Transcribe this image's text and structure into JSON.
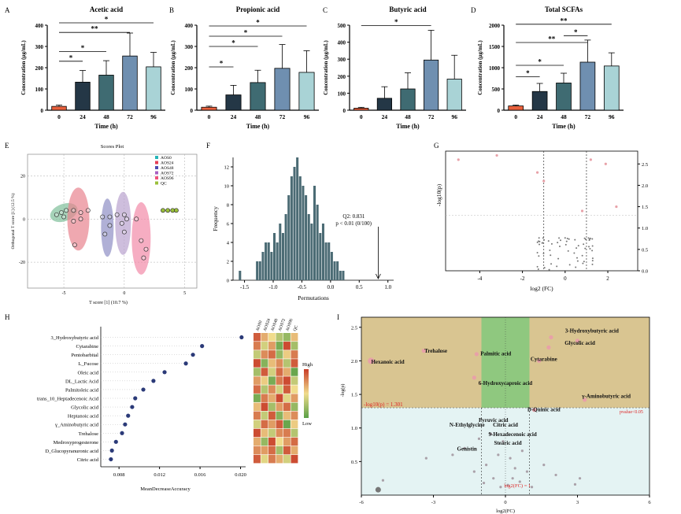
{
  "panel_letters": {
    "A": "A",
    "B": "B",
    "C": "C",
    "D": "D",
    "E": "E",
    "F": "F",
    "G": "G",
    "H": "H",
    "I": "I"
  },
  "colors": {
    "bar0": "#e8603c",
    "bar24": "#243746",
    "bar48": "#3f6b72",
    "bar72": "#6f8fb0",
    "bar96": "#a9d3d6",
    "perm": "#4b6b74",
    "zoneUpper": "#d9c591",
    "zoneLower": "#e4f3f3",
    "zoneGreen": "#8fc87f",
    "pink": "#e8a1a8"
  },
  "chart_data": [
    {
      "id": "A",
      "type": "bar",
      "title": "Acetic acid",
      "xlabel": "Time (h)",
      "ylabel": "Concentration (μg/mL)",
      "categories": [
        "0",
        "24",
        "48",
        "72",
        "96"
      ],
      "values": [
        18,
        132,
        165,
        255,
        204
      ],
      "errors": [
        6,
        55,
        68,
        108,
        68
      ],
      "ylim": [
        0,
        400
      ],
      "yticks": [
        "0",
        "100",
        "200",
        "300",
        "400"
      ],
      "significance": [
        {
          "from": 0,
          "to": 1,
          "level": 1,
          "label": "*"
        },
        {
          "from": 0,
          "to": 2,
          "level": 2,
          "label": "*"
        },
        {
          "from": 0,
          "to": 3,
          "level": 4,
          "label": "**"
        },
        {
          "from": 0,
          "to": 4,
          "level": 5,
          "label": "*"
        }
      ]
    },
    {
      "id": "B",
      "type": "bar",
      "title": "Propionic acid",
      "xlabel": "Time (h)",
      "ylabel": "Concentration (μg/mL)",
      "categories": [
        "0",
        "24",
        "48",
        "72",
        "96"
      ],
      "values": [
        14,
        72,
        130,
        197,
        178
      ],
      "errors": [
        5,
        45,
        58,
        112,
        102
      ],
      "ylim": [
        0,
        400
      ],
      "yticks": [
        "0",
        "100",
        "200",
        "300",
        "400"
      ],
      "significance": [
        {
          "from": 0,
          "to": 1,
          "level": 1,
          "label": "*"
        },
        {
          "from": 0,
          "to": 2,
          "level": 3,
          "label": "*"
        },
        {
          "from": 0,
          "to": 3,
          "level": 4,
          "label": "*"
        },
        {
          "from": 0,
          "to": 4,
          "level": 5,
          "label": "*"
        }
      ]
    },
    {
      "id": "C",
      "type": "bar",
      "title": "Butyric acid",
      "xlabel": "Time (h)",
      "ylabel": "Concentration (μg/mL)",
      "categories": [
        "0",
        "24",
        "48",
        "72",
        "96"
      ],
      "values": [
        12,
        70,
        125,
        295,
        183
      ],
      "errors": [
        5,
        68,
        95,
        175,
        140
      ],
      "ylim": [
        0,
        500
      ],
      "yticks": [
        "0",
        "100",
        "200",
        "300",
        "400",
        "500"
      ],
      "significance": [
        {
          "from": 0,
          "to": 3,
          "level": 5,
          "label": "*"
        }
      ]
    },
    {
      "id": "D",
      "type": "bar",
      "title": "Total SCFAs",
      "xlabel": "Time (h)",
      "ylabel": "Concentration (μg/mL)",
      "categories": [
        "0",
        "24",
        "48",
        "72",
        "96"
      ],
      "values": [
        100,
        440,
        640,
        1130,
        1040
      ],
      "errors": [
        20,
        190,
        230,
        520,
        310
      ],
      "ylim": [
        0,
        2000
      ],
      "yticks": [
        "0",
        "500",
        "1000",
        "1500",
        "2000"
      ],
      "significance": [
        {
          "from": 0,
          "to": 1,
          "level": 1,
          "label": "*"
        },
        {
          "from": 0,
          "to": 2,
          "level": 2,
          "label": "*"
        },
        {
          "from": 0,
          "to": 3,
          "level": 4,
          "label": "**"
        },
        {
          "from": 2,
          "to": 3,
          "level": 4.6,
          "label": "*"
        },
        {
          "from": 0,
          "to": 4,
          "level": 5.6,
          "label": "**"
        }
      ]
    },
    {
      "id": "E",
      "type": "scatter",
      "title": "Scores Plot",
      "xlabel": "T score [1] (10.7 %)",
      "ylabel": "Orthogonal T score [1] (12.5 %)",
      "xlim": [
        -8,
        6
      ],
      "ylim": [
        -32,
        30
      ],
      "xticks": [
        -5,
        0,
        5
      ],
      "yticks": [
        20,
        0,
        -20
      ],
      "legend": [
        "AOS0",
        "AOS24",
        "AOS48",
        "AOS72",
        "AOS96",
        "QC"
      ],
      "legend_colors": [
        "#26b5b8",
        "#e53e55",
        "#4c4ab0",
        "#a85fc2",
        "#f0507a",
        "#9abf3a"
      ],
      "ellipse_colors": [
        "#7fbf9a",
        "#e8838f",
        "#8e8fc4",
        "#b9a3cf",
        "#f28aa8"
      ],
      "groups": [
        {
          "name": "AOS0",
          "points": [
            [
              -5.6,
              2
            ],
            [
              -5.2,
              3
            ],
            [
              -4.8,
              4
            ],
            [
              -5,
              1
            ]
          ]
        },
        {
          "name": "AOS24",
          "points": [
            [
              -4.2,
              4
            ],
            [
              -3.6,
              3
            ],
            [
              -3,
              4
            ],
            [
              -3.6,
              0
            ],
            [
              -4.2,
              -1
            ],
            [
              -4.1,
              -12
            ]
          ]
        },
        {
          "name": "AOS48",
          "points": [
            [
              -1.8,
              1
            ],
            [
              -1.2,
              1
            ],
            [
              -1.2,
              -3
            ],
            [
              -1.6,
              -7
            ]
          ]
        },
        {
          "name": "AOS72",
          "points": [
            [
              -0.6,
              2
            ],
            [
              0,
              2
            ],
            [
              0.2,
              0
            ],
            [
              -0.2,
              -2
            ],
            [
              0,
              -6
            ]
          ]
        },
        {
          "name": "AOS96",
          "points": [
            [
              1.0,
              0
            ],
            [
              1.4,
              -10
            ],
            [
              1.8,
              -14
            ],
            [
              1.6,
              -18
            ]
          ]
        },
        {
          "name": "QC",
          "points": [
            [
              3.2,
              4
            ],
            [
              3.6,
              4
            ],
            [
              4.0,
              4
            ],
            [
              4.3,
              4
            ]
          ]
        }
      ]
    },
    {
      "id": "F",
      "type": "bar",
      "title": "",
      "xlabel": "Permutations",
      "ylabel": "Frequency",
      "xlim": [
        -1.7,
        1.1
      ],
      "ylim": [
        0,
        13
      ],
      "xticks": [
        "-1.5",
        "-1.0",
        "-0.5",
        "0.0",
        "0.5",
        "1.0"
      ],
      "yticks": [
        "0",
        "2",
        "4",
        "6",
        "8",
        "10",
        "12"
      ],
      "bin_starts": [
        -1.6,
        -1.3,
        -1.25,
        -1.2,
        -1.15,
        -1.1,
        -1.05,
        -1.0,
        -0.95,
        -0.9,
        -0.85,
        -0.8,
        -0.75,
        -0.7,
        -0.65,
        -0.6,
        -0.55,
        -0.5,
        -0.45,
        -0.4,
        -0.35,
        -0.3,
        -0.25,
        -0.2,
        -0.15,
        -0.1,
        -0.05,
        0.0,
        0.05,
        0.1,
        0.15,
        0.2
      ],
      "bin_width": 0.05,
      "values": [
        1,
        2,
        2,
        3,
        4,
        4,
        3,
        5,
        4,
        6,
        5,
        7,
        9,
        11,
        12,
        13,
        11,
        10,
        9,
        7,
        6,
        10,
        8,
        5,
        6,
        4,
        4,
        3,
        2,
        2,
        1,
        1
      ],
      "annotation": {
        "q2": "Q2: 0.831",
        "p": "p < 0.01 (0/100)",
        "x": 0.831
      }
    },
    {
      "id": "G",
      "type": "scatter",
      "title": "",
      "xlabel": "log2 (FC)",
      "ylabel": "-log10(p)",
      "xlim": [
        -5.6,
        3.4
      ],
      "ylim": [
        0,
        2.8
      ],
      "xticks": [
        "-4",
        "-2",
        "0",
        "2"
      ],
      "yticks_right": [
        "0.0",
        "0.5",
        "1.0",
        "1.5",
        "2.0",
        "2.5"
      ],
      "thresholds": {
        "x": [
          -1,
          1
        ],
        "y": 1.301
      },
      "highlight_points": [
        [
          -5,
          2.6
        ],
        [
          -3.2,
          2.7
        ],
        [
          -1.3,
          2.3
        ],
        [
          -1,
          2.1
        ],
        [
          1.2,
          2.6
        ],
        [
          1.9,
          2.5
        ],
        [
          2.4,
          1.5
        ],
        [
          0.8,
          1.4
        ]
      ]
    },
    {
      "id": "H",
      "type": "scatter",
      "title": "",
      "xlabel": "MeanDecreaseAccuracy",
      "xlim": [
        0.0062,
        0.0205
      ],
      "xticks": [
        "0.008",
        "0.012",
        "0.016",
        "0.020"
      ],
      "features": [
        "3_Hydroxybutyric acid",
        "Cytarabine",
        "Pentobarbital",
        "L_Fucose",
        "Oleic acid",
        "DL_Lactic Acid",
        "Palmitoleic acid",
        "trans_10_Heptadecenoic Acid",
        "Glycolic acid",
        "Heptanoic acid",
        "γ_Aminobutyric acid",
        "Trehalose",
        "Medroxyprogesterone",
        "D_Glucopyranuronic acid",
        "Citric acid"
      ],
      "values": [
        0.0201,
        0.0162,
        0.0153,
        0.0146,
        0.0125,
        0.0114,
        0.0104,
        0.0096,
        0.0093,
        0.0089,
        0.0086,
        0.0083,
        0.0077,
        0.0073,
        0.0072
      ],
      "heatmap_columns": [
        "AOS0",
        "AOS24",
        "AOS48",
        "AOS72",
        "AOS96",
        "QC"
      ],
      "heatmap_values": [
        [
          0.8,
          0.3,
          0.0,
          -0.4,
          -0.6,
          0.2
        ],
        [
          0.6,
          -0.2,
          0.4,
          -0.8,
          0.9,
          -0.5
        ],
        [
          -0.3,
          0.5,
          0.7,
          -0.6,
          0.1,
          0.6
        ],
        [
          0.9,
          -0.7,
          0.2,
          0.5,
          -0.4,
          0.8
        ],
        [
          -0.5,
          0.8,
          -0.2,
          0.7,
          0.3,
          -0.9
        ],
        [
          0.4,
          0.1,
          -0.8,
          0.6,
          0.9,
          -0.3
        ],
        [
          0.7,
          -0.4,
          0.5,
          -0.2,
          0.8,
          0.0
        ],
        [
          -0.8,
          0.6,
          0.3,
          0.9,
          -0.1,
          0.4
        ],
        [
          0.2,
          0.9,
          -0.5,
          0.4,
          0.7,
          -0.6
        ],
        [
          0.6,
          -0.3,
          0.8,
          -0.7,
          0.2,
          0.5
        ],
        [
          -0.2,
          0.7,
          0.4,
          0.8,
          -0.9,
          0.1
        ],
        [
          0.9,
          0.2,
          -0.3,
          0.5,
          0.6,
          -0.4
        ],
        [
          0.3,
          -0.6,
          0.9,
          0.0,
          0.4,
          0.7
        ],
        [
          0.5,
          0.4,
          0.7,
          -0.5,
          0.8,
          0.3
        ],
        [
          0.8,
          -0.1,
          0.6,
          0.3,
          -0.2,
          0.9
        ]
      ],
      "scale_high": "High",
      "scale_low": "Low"
    },
    {
      "id": "I",
      "type": "scatter",
      "title": "",
      "xlabel": "log2(FC)",
      "ylabel": "-log(p)",
      "xlim": [
        -6,
        6
      ],
      "ylim": [
        0,
        2.65
      ],
      "xticks": [
        "-6",
        "-3",
        "0",
        "3",
        "6"
      ],
      "yticks": [
        "0.5",
        "1.0",
        "1.5",
        "2.0",
        "2.5"
      ],
      "threshold_y": 1.301,
      "threshold_x": [
        -1,
        1
      ],
      "threshold_label": "-log10(p) = 1.301",
      "pvalue_label": "pvalue<0.05",
      "fc_label": "log2(FC) = 1",
      "labels": [
        {
          "text": "3-Hydroxybutyric acid",
          "x": 3.6,
          "y": 2.42
        },
        {
          "text": "Glycolic acid",
          "x": 3.1,
          "y": 2.24
        },
        {
          "text": "Trehalose",
          "x": -2.9,
          "y": 2.12
        },
        {
          "text": "Palmitic acid",
          "x": -0.4,
          "y": 2.08
        },
        {
          "text": "Hexanoic acid",
          "x": -4.9,
          "y": 1.96
        },
        {
          "text": "Cytarabine",
          "x": 1.6,
          "y": 2.0
        },
        {
          "text": "6-Hydroxycaproic acid",
          "x": 0.0,
          "y": 1.64
        },
        {
          "text": "γ-Aminobutyric acid",
          "x": 4.2,
          "y": 1.45
        },
        {
          "text": "D-Quinic acid",
          "x": 1.6,
          "y": 1.25
        },
        {
          "text": "Pyruvic acid",
          "x": -0.5,
          "y": 1.09
        },
        {
          "text": "N-Ethylglycine",
          "x": -1.6,
          "y": 1.02
        },
        {
          "text": "Citric acid",
          "x": 0.0,
          "y": 1.02
        },
        {
          "text": "9-Hexadecenoic acid",
          "x": 0.3,
          "y": 0.88
        },
        {
          "text": "Stearic acid",
          "x": 0.1,
          "y": 0.75
        },
        {
          "text": "Genistin",
          "x": -1.6,
          "y": 0.66
        }
      ],
      "sig_points": [
        [
          -5.6,
          2.0
        ],
        [
          -3.4,
          2.15
        ],
        [
          -1.2,
          2.1
        ],
        [
          -1.3,
          1.75
        ],
        [
          1.4,
          2.0
        ],
        [
          1.8,
          2.2
        ],
        [
          1.9,
          2.35
        ],
        [
          3.0,
          2.3
        ],
        [
          3.3,
          1.42
        ],
        [
          1.2,
          1.27
        ]
      ],
      "small_points": [
        [
          -5.1,
          0.22
        ],
        [
          -3.3,
          0.55
        ],
        [
          -2.2,
          0.6
        ],
        [
          -1.7,
          0.7
        ],
        [
          -1.1,
          0.84
        ],
        [
          -0.6,
          0.91
        ],
        [
          0.7,
          0.66
        ],
        [
          1.6,
          0.45
        ],
        [
          2.1,
          0.3
        ],
        [
          2.9,
          0.16
        ],
        [
          3.1,
          0.25
        ],
        [
          -0.3,
          0.6
        ],
        [
          0.2,
          0.55
        ],
        [
          -0.8,
          0.45
        ],
        [
          -0.1,
          0.8
        ],
        [
          0.4,
          0.4
        ],
        [
          0.9,
          0.35
        ],
        [
          -1.3,
          0.35
        ],
        [
          -0.5,
          0.25
        ],
        [
          0.3,
          0.25
        ],
        [
          0.1,
          0.15
        ],
        [
          -0.9,
          0.18
        ],
        [
          1.1,
          0.12
        ],
        [
          -0.2,
          0.12
        ],
        [
          0.6,
          0.2
        ]
      ]
    }
  ]
}
